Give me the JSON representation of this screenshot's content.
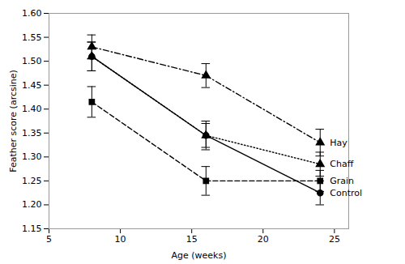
{
  "chart_data": {
    "type": "line",
    "xlabel": "Age (weeks)",
    "ylabel": "Feather score (arcsine)",
    "x": [
      8,
      16,
      24
    ],
    "series": [
      {
        "name": "Hay",
        "color": "#000000",
        "values": [
          1.53,
          1.47,
          1.33
        ],
        "sem": [
          0.025,
          0.025,
          0.028
        ],
        "marker": "triangle",
        "line_style": "dashdot"
      },
      {
        "name": "Chaff",
        "color": "#000000",
        "values": [
          1.51,
          1.345,
          1.285
        ],
        "sem": [
          0.03,
          0.025,
          0.025
        ],
        "marker": "triangle",
        "line_style": "dotted"
      },
      {
        "name": "Grain",
        "color": "#000000",
        "values": [
          1.415,
          1.25,
          1.25
        ],
        "sem": [
          0.032,
          0.03,
          0.022
        ],
        "marker": "square",
        "line_style": "dashed"
      },
      {
        "name": "Control",
        "color": "#000000",
        "values": [
          1.51,
          1.345,
          1.225
        ],
        "sem": [
          0.03,
          0.03,
          0.025
        ],
        "marker": "circle",
        "line_style": "solid"
      }
    ],
    "xlim": [
      5,
      26
    ],
    "ylim": [
      1.15,
      1.6
    ],
    "xticks": [
      5,
      10,
      15,
      20,
      25
    ],
    "yticks": [
      1.15,
      {
        "value": 1.2,
        "label": "1.20"
      },
      1.25,
      {
        "value": 1.3,
        "label": "1.30"
      },
      1.35,
      {
        "value": 1.4,
        "label": "1.40"
      },
      1.45,
      {
        "value": 1.5,
        "label": "1.50"
      },
      1.55,
      {
        "value": 1.6,
        "label": "1.60"
      }
    ]
  }
}
